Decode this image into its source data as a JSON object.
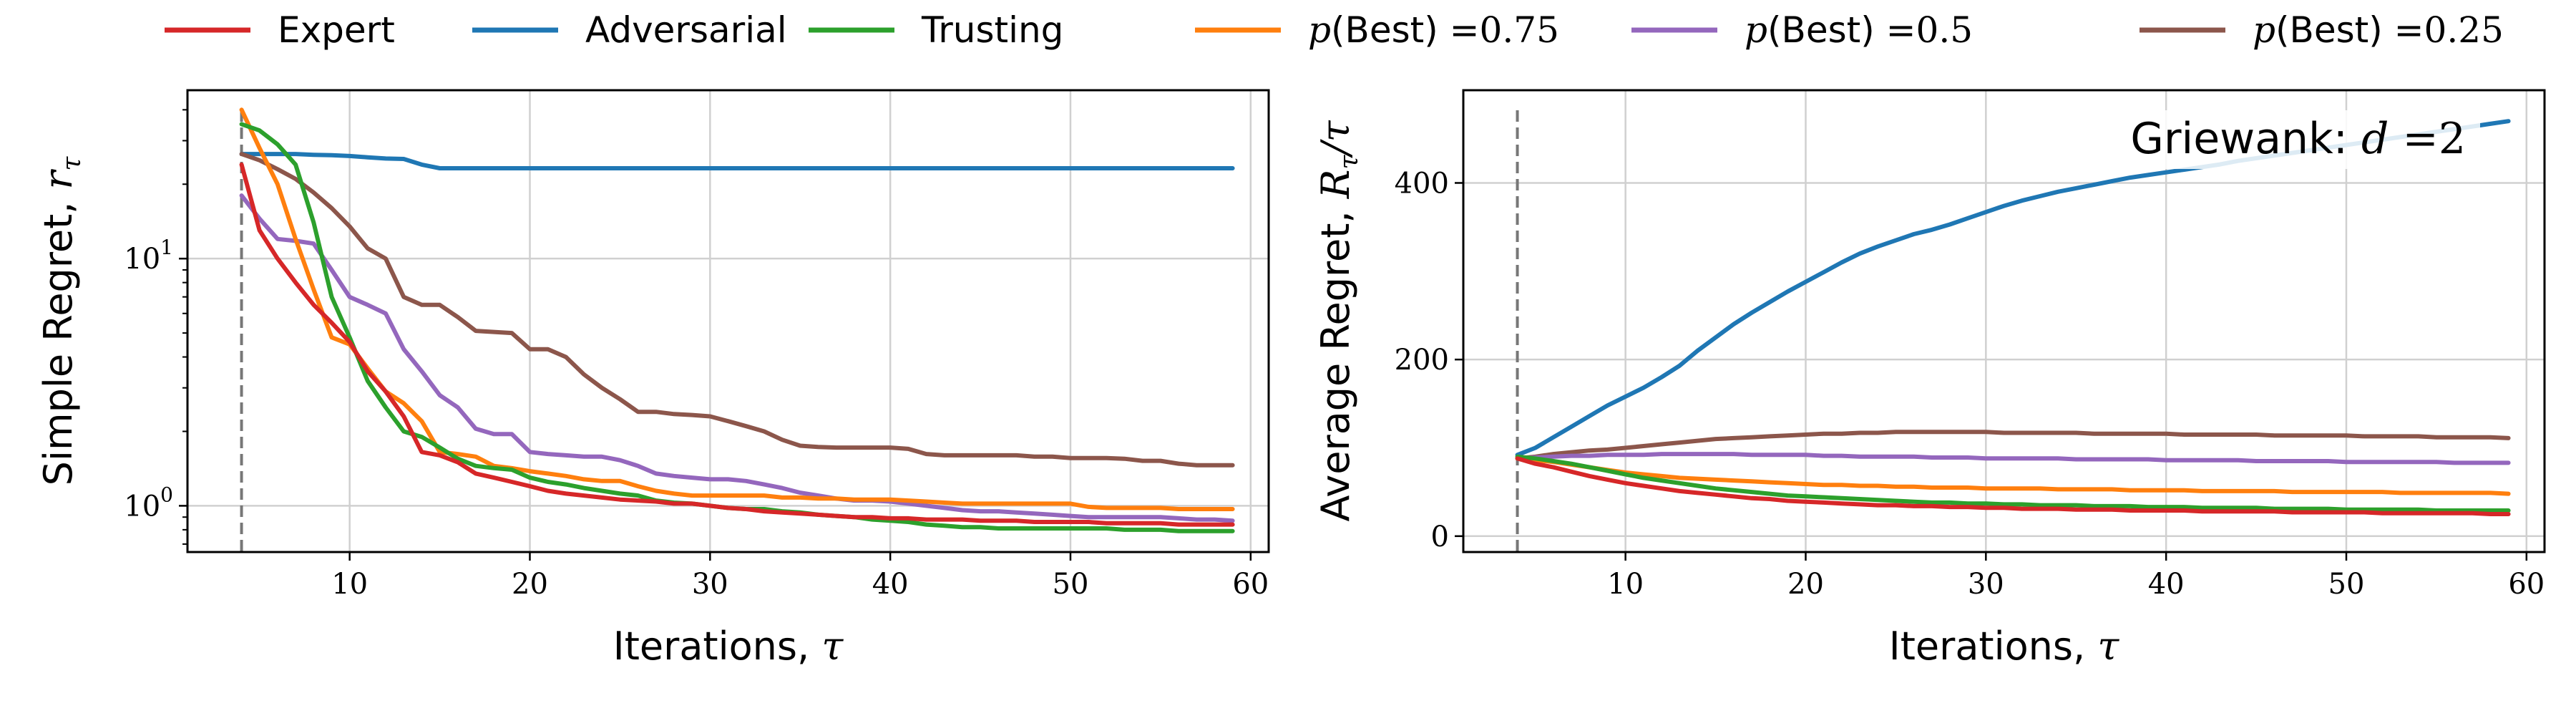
{
  "legend": [
    {
      "key": "expert",
      "label": "Expert",
      "color": "#d62728"
    },
    {
      "key": "adversarial",
      "label": "Adversarial",
      "color": "#1f77b4"
    },
    {
      "key": "trusting",
      "label": "Trusting",
      "color": "#2ca02c"
    },
    {
      "key": "pbest075",
      "label_math": "p",
      "label_text": "(Best) =",
      "label_num": "0.75",
      "color": "#ff7f0e"
    },
    {
      "key": "pbest05",
      "label_math": "p",
      "label_text": "(Best) =",
      "label_num": "0.5",
      "color": "#9467bd"
    },
    {
      "key": "pbest025",
      "label_math": "p",
      "label_text": "(Best) =",
      "label_num": "0.25",
      "color": "#8c564b"
    }
  ],
  "annotation": {
    "text": "Griewank: ",
    "math": "d",
    "eq": " =2"
  },
  "chart_data": [
    {
      "type": "line",
      "name": "simple-regret",
      "xlabel_text": "Iterations, ",
      "xlabel_math": "τ",
      "ylabel_text": "Simple Regret, ",
      "ylabel_math": "r",
      "ylabel_sub": "τ",
      "xlim": [
        1,
        61
      ],
      "ylim": [
        0.65,
        48
      ],
      "yscale": "log",
      "xticks": [
        10,
        20,
        30,
        40,
        50,
        60
      ],
      "yticks": [
        1,
        10
      ],
      "ytick_labels": [
        {
          "base": "10",
          "exp": "0"
        },
        {
          "base": "10",
          "exp": "1"
        }
      ],
      "vline_x": 4,
      "grid": true,
      "x": [
        4,
        5,
        6,
        7,
        8,
        9,
        10,
        11,
        12,
        13,
        14,
        15,
        16,
        17,
        18,
        19,
        20,
        21,
        22,
        23,
        24,
        25,
        26,
        27,
        28,
        29,
        30,
        31,
        32,
        33,
        34,
        35,
        36,
        37,
        38,
        39,
        40,
        41,
        42,
        43,
        44,
        45,
        46,
        47,
        48,
        49,
        50,
        51,
        52,
        53,
        54,
        55,
        56,
        57,
        58,
        59
      ],
      "series": [
        {
          "key": "adversarial",
          "color": "#1f77b4",
          "values": [
            26.5,
            26.5,
            26.5,
            26.5,
            26.3,
            26.2,
            26,
            25.7,
            25.4,
            25.3,
            24,
            23.2,
            23.2,
            23.2,
            23.2,
            23.2,
            23.2,
            23.2,
            23.2,
            23.2,
            23.2,
            23.2,
            23.2,
            23.2,
            23.2,
            23.2,
            23.2,
            23.2,
            23.2,
            23.2,
            23.2,
            23.2,
            23.2,
            23.2,
            23.2,
            23.2,
            23.2,
            23.2,
            23.2,
            23.2,
            23.2,
            23.2,
            23.2,
            23.2,
            23.2,
            23.2,
            23.2,
            23.2,
            23.2,
            23.2,
            23.2,
            23.2,
            23.2,
            23.2,
            23.2,
            23.2
          ]
        },
        {
          "key": "pbest025",
          "color": "#8c564b",
          "values": [
            26.5,
            25,
            23,
            21,
            18.5,
            16,
            13.5,
            11,
            10,
            7,
            6.5,
            6.5,
            5.8,
            5.1,
            5.05,
            5,
            4.3,
            4.3,
            4,
            3.4,
            3,
            2.7,
            2.4,
            2.4,
            2.35,
            2.33,
            2.3,
            2.2,
            2.1,
            2,
            1.85,
            1.75,
            1.73,
            1.72,
            1.72,
            1.72,
            1.72,
            1.7,
            1.62,
            1.6,
            1.6,
            1.6,
            1.6,
            1.6,
            1.58,
            1.58,
            1.56,
            1.56,
            1.56,
            1.55,
            1.52,
            1.52,
            1.48,
            1.46,
            1.46,
            1.46
          ]
        },
        {
          "key": "pbest05",
          "color": "#9467bd",
          "values": [
            18,
            14.5,
            12,
            11.8,
            11.5,
            9,
            7,
            6.5,
            6,
            4.3,
            3.5,
            2.8,
            2.5,
            2.05,
            1.95,
            1.95,
            1.65,
            1.62,
            1.6,
            1.58,
            1.58,
            1.53,
            1.45,
            1.35,
            1.32,
            1.3,
            1.28,
            1.28,
            1.26,
            1.22,
            1.18,
            1.13,
            1.1,
            1.07,
            1.05,
            1.05,
            1.04,
            1.02,
            1,
            0.98,
            0.96,
            0.95,
            0.95,
            0.94,
            0.93,
            0.92,
            0.91,
            0.9,
            0.9,
            0.9,
            0.9,
            0.9,
            0.89,
            0.88,
            0.88,
            0.87
          ]
        },
        {
          "key": "pbest075",
          "color": "#ff7f0e",
          "values": [
            40,
            28,
            20,
            12,
            7.5,
            4.8,
            4.5,
            3.6,
            2.9,
            2.6,
            2.2,
            1.65,
            1.62,
            1.58,
            1.45,
            1.42,
            1.38,
            1.35,
            1.32,
            1.28,
            1.26,
            1.26,
            1.2,
            1.15,
            1.12,
            1.1,
            1.1,
            1.1,
            1.1,
            1.1,
            1.08,
            1.08,
            1.07,
            1.07,
            1.06,
            1.06,
            1.06,
            1.05,
            1.04,
            1.03,
            1.02,
            1.02,
            1.02,
            1.02,
            1.02,
            1.02,
            1.02,
            0.99,
            0.98,
            0.98,
            0.98,
            0.98,
            0.97,
            0.97,
            0.97,
            0.97
          ]
        },
        {
          "key": "trusting",
          "color": "#2ca02c",
          "values": [
            35,
            33,
            29,
            24,
            14,
            7,
            4.8,
            3.2,
            2.5,
            2,
            1.9,
            1.72,
            1.55,
            1.45,
            1.42,
            1.4,
            1.3,
            1.25,
            1.22,
            1.18,
            1.15,
            1.12,
            1.1,
            1.05,
            1.03,
            1.02,
            1,
            0.98,
            0.97,
            0.97,
            0.95,
            0.94,
            0.92,
            0.91,
            0.9,
            0.88,
            0.87,
            0.86,
            0.84,
            0.83,
            0.82,
            0.82,
            0.81,
            0.81,
            0.81,
            0.81,
            0.81,
            0.81,
            0.81,
            0.8,
            0.8,
            0.8,
            0.79,
            0.79,
            0.79,
            0.79
          ]
        },
        {
          "key": "expert",
          "color": "#d62728",
          "values": [
            24,
            13,
            10,
            8,
            6.5,
            5.5,
            4.6,
            3.5,
            2.9,
            2.3,
            1.65,
            1.6,
            1.5,
            1.35,
            1.3,
            1.25,
            1.2,
            1.15,
            1.12,
            1.1,
            1.08,
            1.06,
            1.05,
            1.04,
            1.02,
            1.02,
            1,
            0.98,
            0.97,
            0.95,
            0.94,
            0.93,
            0.92,
            0.91,
            0.9,
            0.9,
            0.89,
            0.89,
            0.88,
            0.88,
            0.88,
            0.87,
            0.87,
            0.87,
            0.86,
            0.86,
            0.86,
            0.86,
            0.85,
            0.85,
            0.85,
            0.85,
            0.84,
            0.84,
            0.84,
            0.84
          ]
        }
      ]
    },
    {
      "type": "line",
      "name": "average-regret",
      "xlabel_text": "Iterations, ",
      "xlabel_math": "τ",
      "ylabel_text": "Average Regret, ",
      "ylabel_math": "R",
      "ylabel_sub": "τ",
      "ylabel_tail": "/τ",
      "xlim": [
        1,
        61
      ],
      "ylim": [
        -18,
        505
      ],
      "yscale": "linear",
      "xticks": [
        10,
        20,
        30,
        40,
        50,
        60
      ],
      "yticks": [
        0,
        200,
        400
      ],
      "vline_x": 4,
      "grid": true,
      "x": [
        4,
        5,
        6,
        7,
        8,
        9,
        10,
        11,
        12,
        13,
        14,
        15,
        16,
        17,
        18,
        19,
        20,
        21,
        22,
        23,
        24,
        25,
        26,
        27,
        28,
        29,
        30,
        31,
        32,
        33,
        34,
        35,
        36,
        37,
        38,
        39,
        40,
        41,
        42,
        43,
        44,
        45,
        46,
        47,
        48,
        49,
        50,
        51,
        52,
        53,
        54,
        55,
        56,
        57,
        58,
        59
      ],
      "series": [
        {
          "key": "adversarial",
          "color": "#1f77b4",
          "values": [
            92,
            100,
            112,
            124,
            136,
            148,
            158,
            168,
            180,
            193,
            210,
            225,
            240,
            253,
            265,
            277,
            288,
            299,
            310,
            320,
            328,
            335,
            342,
            347,
            353,
            360,
            367,
            374,
            380,
            385,
            390,
            394,
            398,
            402,
            406,
            409,
            412,
            415,
            418,
            421,
            425,
            428,
            431,
            434,
            437,
            440,
            443,
            446,
            449,
            452,
            455,
            458,
            461,
            464,
            467,
            470
          ]
        },
        {
          "key": "pbest025",
          "color": "#8c564b",
          "values": [
            88,
            90,
            93,
            95,
            97,
            98,
            100,
            102,
            104,
            106,
            108,
            110,
            111,
            112,
            113,
            114,
            115,
            116,
            116,
            117,
            117,
            118,
            118,
            118,
            118,
            118,
            118,
            117,
            117,
            117,
            117,
            117,
            116,
            116,
            116,
            116,
            116,
            115,
            115,
            115,
            115,
            115,
            114,
            114,
            114,
            114,
            114,
            113,
            113,
            113,
            113,
            112,
            112,
            112,
            112,
            111
          ]
        },
        {
          "key": "pbest05",
          "color": "#9467bd",
          "values": [
            88,
            89,
            90,
            91,
            91,
            92,
            92,
            92,
            93,
            93,
            93,
            93,
            93,
            92,
            92,
            92,
            92,
            91,
            91,
            90,
            90,
            90,
            90,
            89,
            89,
            89,
            88,
            88,
            88,
            88,
            88,
            87,
            87,
            87,
            87,
            87,
            86,
            86,
            86,
            86,
            86,
            85,
            85,
            85,
            85,
            85,
            84,
            84,
            84,
            84,
            84,
            84,
            83,
            83,
            83,
            83
          ]
        },
        {
          "key": "pbest075",
          "color": "#ff7f0e",
          "values": [
            88,
            86,
            84,
            81,
            78,
            75,
            72,
            70,
            68,
            66,
            65,
            64,
            63,
            62,
            61,
            60,
            59,
            58,
            58,
            57,
            57,
            56,
            56,
            55,
            55,
            55,
            54,
            54,
            54,
            54,
            53,
            53,
            53,
            53,
            52,
            52,
            52,
            52,
            51,
            51,
            51,
            51,
            51,
            50,
            50,
            50,
            50,
            50,
            50,
            49,
            49,
            49,
            49,
            49,
            49,
            48
          ]
        },
        {
          "key": "trusting",
          "color": "#2ca02c",
          "values": [
            90,
            88,
            85,
            82,
            78,
            74,
            70,
            66,
            63,
            60,
            57,
            54,
            52,
            50,
            48,
            46,
            45,
            44,
            43,
            42,
            41,
            40,
            39,
            38,
            38,
            37,
            37,
            36,
            36,
            35,
            35,
            35,
            34,
            34,
            34,
            33,
            33,
            33,
            32,
            32,
            32,
            32,
            31,
            31,
            31,
            31,
            30,
            30,
            30,
            30,
            30,
            29,
            29,
            29,
            29,
            29
          ]
        },
        {
          "key": "expert",
          "color": "#d62728",
          "values": [
            88,
            82,
            78,
            73,
            68,
            64,
            60,
            57,
            54,
            51,
            49,
            47,
            45,
            43,
            42,
            40,
            39,
            38,
            37,
            36,
            35,
            35,
            34,
            34,
            33,
            33,
            32,
            32,
            31,
            31,
            31,
            30,
            30,
            30,
            29,
            29,
            29,
            29,
            28,
            28,
            28,
            28,
            28,
            27,
            27,
            27,
            27,
            27,
            26,
            26,
            26,
            26,
            26,
            26,
            25,
            25
          ]
        }
      ]
    }
  ]
}
